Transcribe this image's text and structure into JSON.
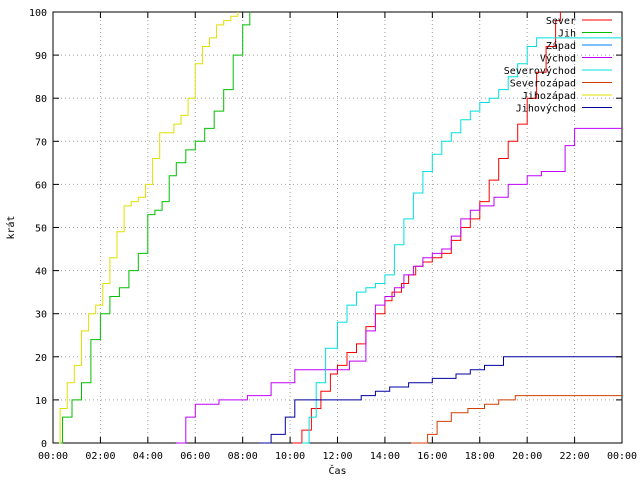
{
  "chart_data": {
    "type": "line",
    "title": "",
    "xlabel": "Čas",
    "ylabel": "krát",
    "xlim_hours": [
      0,
      24
    ],
    "ylim": [
      0,
      100
    ],
    "x_ticks": [
      "00:00",
      "02:00",
      "04:00",
      "06:00",
      "08:00",
      "10:00",
      "12:00",
      "14:00",
      "16:00",
      "18:00",
      "20:00",
      "22:00",
      "00:00"
    ],
    "y_ticks": [
      0,
      10,
      20,
      30,
      40,
      50,
      60,
      70,
      80,
      90,
      100
    ],
    "grid": true,
    "legend_position": "top-right",
    "series": [
      {
        "name": "Sever",
        "color": "#ff0000",
        "x": [
          10.1,
          10.5,
          10.9,
          11.3,
          11.7,
          12.0,
          12.4,
          12.8,
          13.2,
          13.6,
          14.0,
          14.3,
          14.7,
          15.0,
          15.3,
          15.6,
          16.0,
          16.4,
          16.8,
          17.2,
          17.6,
          18.0,
          18.4,
          18.8,
          19.2,
          19.6,
          20.0,
          20.4,
          20.8,
          21.2,
          21.4
        ],
        "y": [
          0,
          3,
          8,
          12,
          16,
          18,
          21,
          23,
          27,
          30,
          33,
          35,
          37,
          39,
          41,
          42,
          43,
          44,
          47,
          50,
          52,
          56,
          61,
          66,
          70,
          74,
          80,
          86,
          92,
          98,
          100
        ]
      },
      {
        "name": "Jih",
        "color": "#00c000",
        "x": [
          0,
          0.4,
          0.8,
          1.2,
          1.6,
          2.0,
          2.4,
          2.8,
          3.2,
          3.6,
          4.0,
          4.3,
          4.6,
          4.9,
          5.2,
          5.6,
          6.0,
          6.4,
          6.8,
          7.2,
          7.6,
          8.0,
          8.3
        ],
        "y": [
          0,
          6,
          10,
          14,
          24,
          30,
          34,
          36,
          40,
          44,
          53,
          54,
          56,
          62,
          65,
          68,
          70,
          73,
          77,
          82,
          90,
          97,
          100
        ]
      },
      {
        "name": "Západ",
        "color": "#0080ff",
        "x": [],
        "y": []
      },
      {
        "name": "Východ",
        "color": "#c000ff",
        "x": [
          5.2,
          5.6,
          6.0,
          7.0,
          8.2,
          9.2,
          10.2,
          11.5,
          12.5,
          13.2,
          13.6,
          14.0,
          14.4,
          14.8,
          15.2,
          15.6,
          16.0,
          16.4,
          16.8,
          17.2,
          17.6,
          18.0,
          18.6,
          19.2,
          20.0,
          20.6,
          21.2,
          21.6,
          22.0,
          22.4,
          24.0
        ],
        "y": [
          0,
          6,
          9,
          10,
          11,
          14,
          17,
          17,
          19,
          26,
          32,
          34,
          36,
          39,
          41,
          43,
          44,
          45,
          48,
          52,
          54,
          55,
          57,
          60,
          62,
          63,
          63,
          69,
          73,
          73,
          73
        ]
      },
      {
        "name": "Severovýchod",
        "color": "#00e0e0",
        "x": [
          10.5,
          10.8,
          11.1,
          11.5,
          12.0,
          12.4,
          12.8,
          13.2,
          13.6,
          14.0,
          14.4,
          14.8,
          15.2,
          15.6,
          16.0,
          16.4,
          16.8,
          17.2,
          17.6,
          18.0,
          18.4,
          18.8,
          19.2,
          19.6,
          20.0,
          20.4,
          20.8,
          21.2,
          24.0
        ],
        "y": [
          0,
          6,
          14,
          22,
          28,
          32,
          35,
          36,
          37,
          39,
          46,
          52,
          58,
          63,
          67,
          70,
          72,
          75,
          77,
          79,
          80,
          82,
          85,
          88,
          92,
          94,
          94,
          94,
          94
        ]
      },
      {
        "name": "Severozápad",
        "color": "#d04000",
        "x": [
          15.1,
          15.8,
          16.2,
          16.8,
          17.5,
          18.2,
          18.8,
          19.5,
          24.0
        ],
        "y": [
          0,
          2,
          5,
          7,
          8,
          9,
          10,
          11,
          11
        ]
      },
      {
        "name": "Jihozápad",
        "color": "#e0e000",
        "x": [
          0,
          0.3,
          0.6,
          0.9,
          1.2,
          1.5,
          1.8,
          2.1,
          2.4,
          2.7,
          3.0,
          3.3,
          3.6,
          3.9,
          4.2,
          4.5,
          4.8,
          5.1,
          5.4,
          5.7,
          6.0,
          6.3,
          6.6,
          6.9,
          7.2,
          7.5,
          7.8
        ],
        "y": [
          0,
          8,
          14,
          18,
          26,
          30,
          32,
          37,
          43,
          49,
          55,
          56,
          57,
          60,
          66,
          72,
          72,
          74,
          76,
          80,
          88,
          92,
          94,
          97,
          98,
          99,
          100
        ]
      },
      {
        "name": "Jihovýchod",
        "color": "#0000a0",
        "x": [
          8.7,
          9.2,
          9.8,
          10.2,
          11.0,
          12.0,
          13.0,
          13.6,
          14.2,
          15.0,
          16.0,
          17.0,
          17.6,
          18.2,
          19.0,
          20.0,
          24.0
        ],
        "y": [
          0,
          2,
          6,
          10,
          10,
          10,
          11,
          12,
          13,
          14,
          15,
          16,
          17,
          18,
          20,
          20,
          20
        ]
      }
    ]
  }
}
